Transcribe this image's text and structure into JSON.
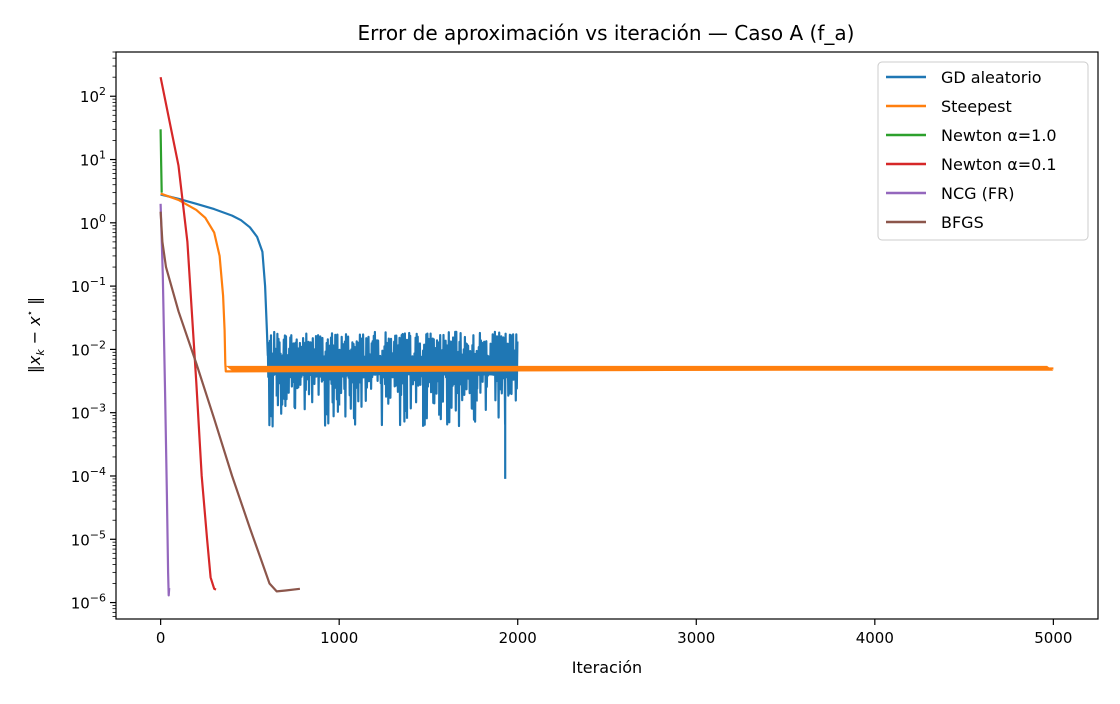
{
  "chart_data": {
    "type": "line",
    "title": "Error de aproximación vs iteración — Caso A (f_a)",
    "xlabel": "Iteración",
    "ylabel_parts": [
      "‖",
      "x",
      "k",
      " − ",
      "x",
      "⋆",
      " ‖"
    ],
    "x_scale": "linear",
    "y_scale": "log",
    "xlim": [
      -250,
      5250
    ],
    "ylim": [
      5.5e-07,
      500
    ],
    "x_ticks": [
      {
        "value": 0,
        "label": "0"
      },
      {
        "value": 1000,
        "label": "1000"
      },
      {
        "value": 2000,
        "label": "2000"
      },
      {
        "value": 3000,
        "label": "3000"
      },
      {
        "value": 4000,
        "label": "4000"
      },
      {
        "value": 5000,
        "label": "5000"
      }
    ],
    "y_ticks": [
      {
        "value": 1e-06,
        "base": "10",
        "exp": "−6"
      },
      {
        "value": 1e-05,
        "base": "10",
        "exp": "−5"
      },
      {
        "value": 0.0001,
        "base": "10",
        "exp": "−4"
      },
      {
        "value": 0.001,
        "base": "10",
        "exp": "−3"
      },
      {
        "value": 0.01,
        "base": "10",
        "exp": "−2"
      },
      {
        "value": 0.1,
        "base": "10",
        "exp": "−1"
      },
      {
        "value": 1,
        "base": "10",
        "exp": "0"
      },
      {
        "value": 10,
        "base": "10",
        "exp": "1"
      },
      {
        "value": 100,
        "base": "10",
        "exp": "2"
      }
    ],
    "grid": false,
    "legend_position": "top-right",
    "series": [
      {
        "name": "GD aleatorio",
        "color": "#1f77b4",
        "points": [
          [
            0,
            2.8
          ],
          [
            100,
            2.4
          ],
          [
            200,
            2.0
          ],
          [
            300,
            1.65
          ],
          [
            400,
            1.3
          ],
          [
            450,
            1.1
          ],
          [
            500,
            0.85
          ],
          [
            540,
            0.6
          ],
          [
            570,
            0.35
          ],
          [
            585,
            0.1
          ],
          [
            595,
            0.02
          ],
          [
            600,
            0.008
          ]
        ],
        "noisy_tail": {
          "x_start": 600,
          "x_end": 2000,
          "center": 0.005,
          "low": 0.0006,
          "high": 0.019,
          "spikes": [
            [
              650,
              0.0018
            ],
            [
              750,
              0.0012
            ],
            [
              1000,
              0.0013
            ],
            [
              1380,
              0.0008
            ],
            [
              1470,
              0.0006
            ],
            [
              1560,
              0.0009
            ],
            [
              1770,
              0.0015
            ],
            [
              1930,
              9e-05
            ]
          ]
        }
      },
      {
        "name": "Steepest",
        "color": "#ff7f0e",
        "points": [
          [
            0,
            2.9
          ],
          [
            100,
            2.3
          ],
          [
            200,
            1.6
          ],
          [
            250,
            1.2
          ],
          [
            300,
            0.7
          ],
          [
            330,
            0.3
          ],
          [
            350,
            0.07
          ],
          [
            358,
            0.02
          ],
          [
            362,
            0.006
          ],
          [
            365,
            0.0045
          ],
          [
            5000,
            0.005
          ]
        ],
        "band": {
          "x_start": 365,
          "x_end": 5000,
          "low": 0.0046,
          "high": 0.0055
        }
      },
      {
        "name": "Newton α=1.0",
        "color": "#2ca02c",
        "points": [
          [
            0,
            30
          ],
          [
            3,
            8
          ],
          [
            6,
            3
          ]
        ]
      },
      {
        "name": "Newton α=0.1",
        "color": "#d62728",
        "points": [
          [
            0,
            200
          ],
          [
            100,
            8
          ],
          [
            150,
            0.5
          ],
          [
            200,
            0.003
          ],
          [
            230,
            0.0001
          ],
          [
            260,
            1e-05
          ],
          [
            280,
            2.5e-06
          ],
          [
            300,
            1.65e-06
          ],
          [
            310,
            1.6e-06
          ]
        ]
      },
      {
        "name": "NCG (FR)",
        "color": "#9467bd",
        "points": [
          [
            0,
            2.0
          ],
          [
            12,
            0.15
          ],
          [
            25,
            0.002
          ],
          [
            35,
            5e-05
          ],
          [
            42,
            3e-06
          ],
          [
            45,
            1.3e-06
          ],
          [
            48,
            1.7e-06
          ]
        ]
      },
      {
        "name": "BFGS",
        "color": "#8c564b",
        "points": [
          [
            0,
            1.5
          ],
          [
            10,
            0.5
          ],
          [
            30,
            0.2
          ],
          [
            100,
            0.04
          ],
          [
            200,
            0.006
          ],
          [
            300,
            0.0008
          ],
          [
            400,
            0.0001
          ],
          [
            500,
            1.5e-05
          ],
          [
            560,
            5e-06
          ],
          [
            610,
            2e-06
          ],
          [
            650,
            1.5e-06
          ],
          [
            700,
            1.55e-06
          ],
          [
            780,
            1.65e-06
          ]
        ]
      }
    ]
  }
}
